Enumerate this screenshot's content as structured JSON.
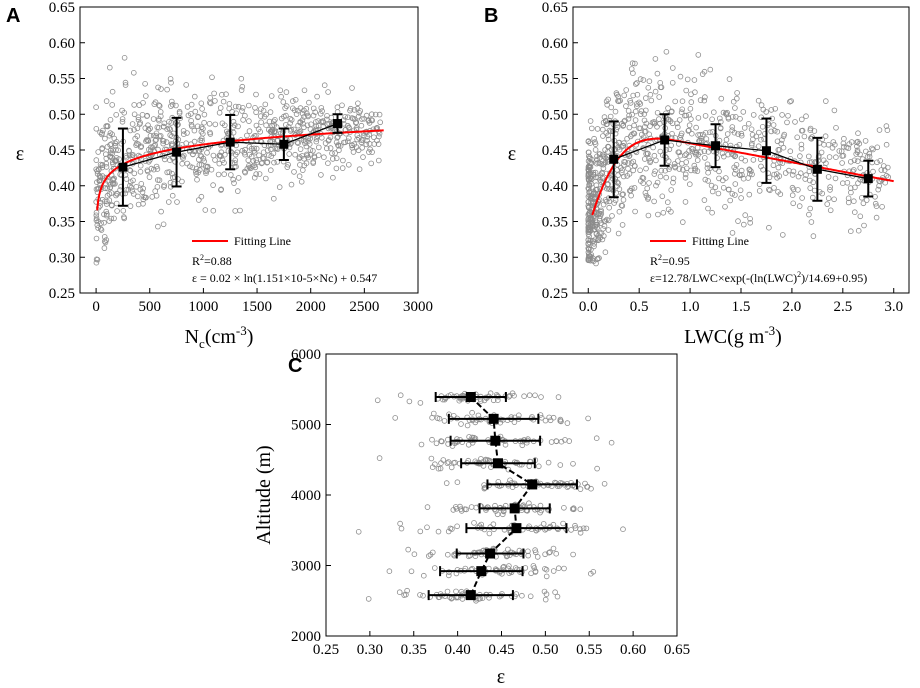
{
  "figure": {
    "panels": [
      "A",
      "B",
      "C"
    ]
  },
  "chart_data": [
    {
      "id": "A",
      "type": "scatter",
      "panel_label": "A",
      "xlabel": "N",
      "xlabel_sub": "c",
      "xlabel_unit": "(cm",
      "xlabel_sup": "-3",
      "xlabel_close": ")",
      "ylabel": "ε",
      "xlim": [
        -150,
        3000
      ],
      "ylim": [
        0.25,
        0.65
      ],
      "xticks": [
        0,
        500,
        1000,
        1500,
        2000,
        2500,
        3000
      ],
      "yticks": [
        0.25,
        0.3,
        0.35,
        0.4,
        0.45,
        0.5,
        0.55,
        0.6,
        0.65
      ],
      "legend_label": "Fitting Line",
      "r2_text": "R",
      "r2_sup": "2",
      "r2_value": "=0.88",
      "equation": "ε = 0.02 × ln(1.151×10-5×Nc) + 0.547",
      "binned_means": {
        "x": [
          250,
          750,
          1250,
          1750,
          2250
        ],
        "mean": [
          0.426,
          0.447,
          0.461,
          0.458,
          0.487
        ],
        "err": [
          0.054,
          0.048,
          0.038,
          0.022,
          0.013
        ]
      },
      "fit": {
        "a": 0.02,
        "b": 1.151e-05,
        "c": 0.547,
        "x_start": 10,
        "x_end": 2680
      },
      "colors": {
        "fit": "#ff0000",
        "marker": "#000000",
        "scatter": "#8c8c8c"
      }
    },
    {
      "id": "B",
      "type": "scatter",
      "panel_label": "B",
      "xlabel": "LWC(g m",
      "xlabel_sup": "-3",
      "xlabel_close": ")",
      "ylabel": "ε",
      "xlim": [
        -0.15,
        3.15
      ],
      "ylim": [
        0.25,
        0.65
      ],
      "xticks": [
        0.0,
        0.5,
        1.0,
        1.5,
        2.0,
        2.5,
        3.0
      ],
      "yticks": [
        0.25,
        0.3,
        0.35,
        0.4,
        0.45,
        0.5,
        0.55,
        0.6,
        0.65
      ],
      "legend_label": "Fitting Line",
      "r2_text": "R",
      "r2_sup": "2",
      "r2_value": "=0.95",
      "equation_a": "ε=12.78/LWC×exp(-(ln(LWC)",
      "equation_sup": "2",
      "equation_b": ")/14.69+0.95)",
      "binned_means": {
        "x": [
          0.25,
          0.75,
          1.25,
          1.75,
          2.25,
          2.75
        ],
        "mean": [
          0.437,
          0.464,
          0.456,
          0.449,
          0.423,
          0.41
        ],
        "err": [
          0.053,
          0.036,
          0.03,
          0.045,
          0.044,
          0.025
        ]
      },
      "colors": {
        "fit": "#ff0000",
        "marker": "#000000",
        "scatter": "#8c8c8c"
      }
    },
    {
      "id": "C",
      "type": "scatter",
      "panel_label": "C",
      "xlabel": "ε",
      "ylabel": "Altitude (m)",
      "xlim": [
        0.25,
        0.65
      ],
      "ylim": [
        2000,
        6000
      ],
      "xticks": [
        0.25,
        0.3,
        0.35,
        0.4,
        0.45,
        0.5,
        0.55,
        0.6,
        0.65
      ],
      "yticks": [
        2000,
        3000,
        4000,
        5000,
        6000
      ],
      "binned_means": {
        "altitude": [
          2580,
          2920,
          3170,
          3530,
          3810,
          4150,
          4450,
          4770,
          5080,
          5390
        ],
        "mean": [
          0.415,
          0.427,
          0.437,
          0.467,
          0.465,
          0.485,
          0.446,
          0.443,
          0.441,
          0.415
        ],
        "err": [
          0.048,
          0.047,
          0.038,
          0.057,
          0.04,
          0.051,
          0.042,
          0.051,
          0.051,
          0.04
        ]
      },
      "colors": {
        "marker": "#000000",
        "scatter": "#8c8c8c"
      }
    }
  ]
}
